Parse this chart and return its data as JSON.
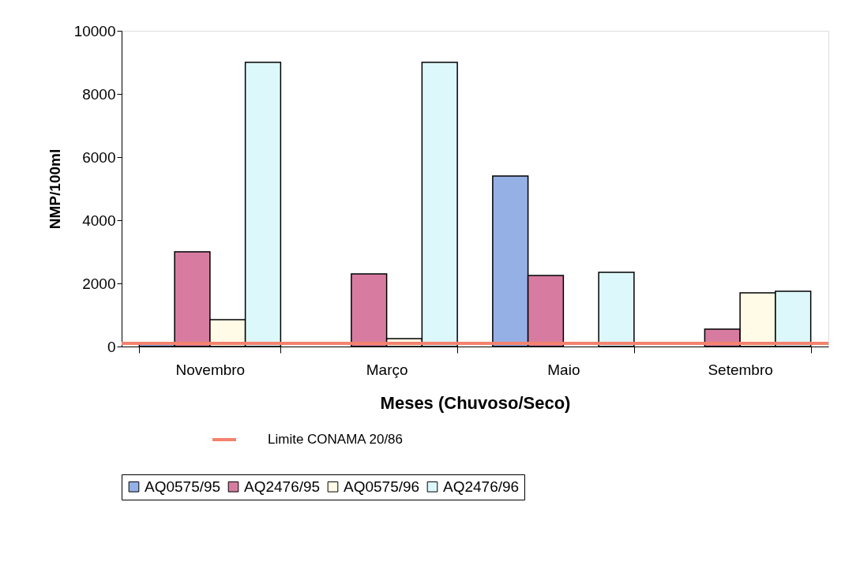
{
  "chart_data": {
    "type": "bar",
    "xlabel": "Meses (Chuvoso/Seco)",
    "ylabel": "NMP/100ml",
    "categories": [
      "Novembro",
      "Março",
      "Maio",
      "Setembro"
    ],
    "series": [
      {
        "name": "AQ0575/95",
        "color": "#95b0e4",
        "values": [
          100,
          null,
          5400,
          null
        ]
      },
      {
        "name": "AQ2476/95",
        "color": "#d77ca0",
        "values": [
          3000,
          2300,
          2250,
          550
        ]
      },
      {
        "name": "AQ0575/96",
        "color": "#fffbe6",
        "values": [
          850,
          250,
          null,
          1700
        ]
      },
      {
        "name": "AQ2476/96",
        "color": "#dcf8fa",
        "values": [
          9000,
          9000,
          2350,
          1750
        ]
      }
    ],
    "ylim": [
      0,
      10000
    ],
    "yticks": [
      0,
      2000,
      4000,
      6000,
      8000,
      10000
    ],
    "grid": false,
    "legend": "bottom",
    "ref_lines": [
      {
        "axis": "y",
        "value": 100,
        "label": "Limite CONAMA 20/86",
        "color": "#f4826e"
      }
    ]
  }
}
